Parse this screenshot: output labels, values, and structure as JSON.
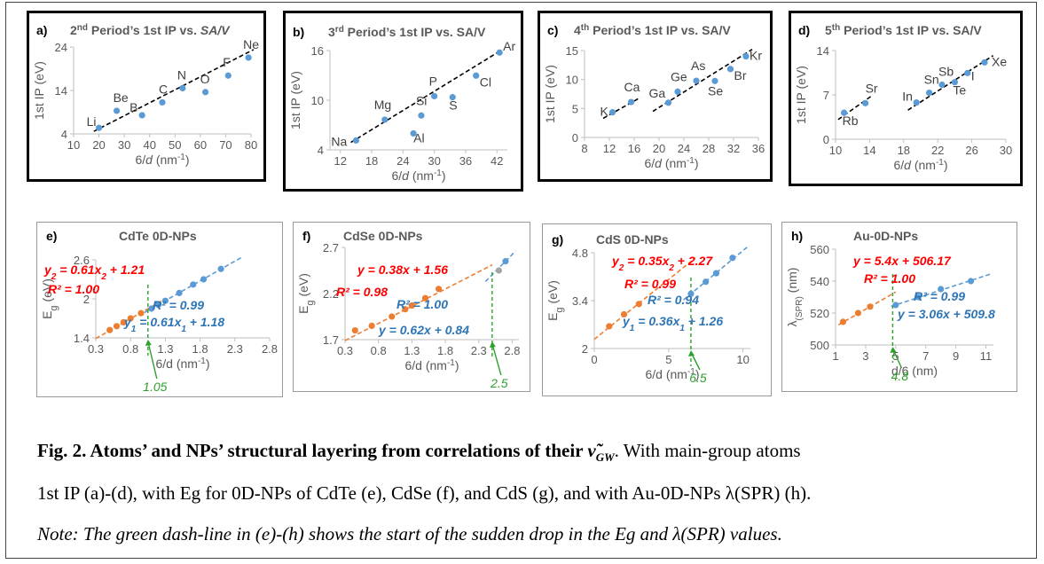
{
  "chart_data": [
    {
      "id": "a",
      "panel_label": "a)",
      "title_html": "2<tspan baseline-shift=\"super\" font-size=\"10\">nd</tspan> Period’s 1st IP vs. <tspan font-style=\"italic\">SA/V</tspan>",
      "type": "scatter",
      "xlabel_html": "6/<tspan font-style=\"italic\">d</tspan> (nm<tspan baseline-shift=\"super\" font-size=\"10\">-1</tspan>)",
      "ylabel": "1st IP (eV)",
      "xlim": [
        10,
        80
      ],
      "ylim": [
        4,
        24
      ],
      "xticks": [
        10,
        20,
        30,
        40,
        50,
        60,
        70,
        80
      ],
      "yticks": [
        4,
        14,
        24
      ],
      "series": [
        {
          "color": "#5b9bd5",
          "x": [
            20,
            27,
            37,
            45,
            53,
            62,
            71,
            79
          ],
          "y": [
            5.39,
            9.32,
            8.3,
            11.26,
            14.53,
            13.62,
            17.42,
            21.56
          ],
          "labels": [
            "Li",
            "Be",
            "B",
            "C",
            "N",
            "O",
            "F",
            "Ne"
          ]
        }
      ],
      "trendlines": [
        {
          "x": [
            18,
            81
          ],
          "y": [
            4.6,
            23.4
          ],
          "color": "#000000"
        }
      ]
    },
    {
      "id": "b",
      "panel_label": "b)",
      "title_html": "3<tspan baseline-shift=\"super\" font-size=\"10\">rd</tspan> Period’s 1st IP vs. SA/V",
      "type": "scatter",
      "xlabel_html": "6/<tspan font-style=\"italic\">d</tspan> (nm<tspan baseline-shift=\"super\" font-size=\"10\">-1</tspan>)",
      "ylabel": "1st IP (eV)",
      "xlim": [
        10,
        44
      ],
      "ylim": [
        4,
        16
      ],
      "xticks": [
        12,
        18,
        24,
        30,
        36,
        42
      ],
      "yticks": [
        4,
        10,
        16
      ],
      "series": [
        {
          "color": "#5b9bd5",
          "x": [
            15,
            20.5,
            26,
            27.5,
            30,
            33.5,
            38,
            42.5
          ],
          "y": [
            5.14,
            7.65,
            5.99,
            8.15,
            10.49,
            10.36,
            12.97,
            15.76
          ],
          "labels": [
            "Na",
            "Mg",
            "Al",
            "Si",
            "P",
            "S",
            "Cl",
            "Ar"
          ]
        }
      ],
      "trendlines": [
        {
          "x": [
            14,
            43
          ],
          "y": [
            4.9,
            16.1
          ],
          "color": "#000000"
        }
      ]
    },
    {
      "id": "c",
      "panel_label": "c)",
      "title_html": "4<tspan baseline-shift=\"super\" font-size=\"10\">th</tspan> Period’s 1st IP vs. SA/V",
      "type": "scatter",
      "xlabel_html": "6/<tspan font-style=\"italic\">d</tspan> (nm<tspan baseline-shift=\"super\" font-size=\"10\">-1</tspan>)",
      "ylabel": "1st IP (eV)",
      "xlim": [
        8,
        36
      ],
      "ylim": [
        0,
        15
      ],
      "xticks": [
        8,
        12,
        16,
        20,
        24,
        28,
        32,
        36
      ],
      "yticks": [
        0,
        5,
        10,
        15
      ],
      "series": [
        {
          "color": "#5b9bd5",
          "x": [
            12.5,
            15.5,
            21.5,
            23,
            26,
            29,
            31.5,
            34
          ],
          "y": [
            4.34,
            6.11,
            6.0,
            7.9,
            9.79,
            9.75,
            11.81,
            14.0
          ],
          "labels": [
            "K",
            "Ca",
            "Ga",
            "Ge",
            "As",
            "Se",
            "Br",
            "Kr"
          ]
        }
      ],
      "trendlines": [
        {
          "x": [
            11,
            17
          ],
          "y": [
            3.3,
            6.9
          ],
          "color": "#000000"
        },
        {
          "x": [
            19,
            35
          ],
          "y": [
            4.5,
            15.2
          ],
          "color": "#000000"
        }
      ]
    },
    {
      "id": "d",
      "panel_label": "d)",
      "title_html": "5<tspan baseline-shift=\"super\" font-size=\"10\">th</tspan> Period’s 1st IP vs. SA/V",
      "type": "scatter",
      "xlabel_html": "6/<tspan font-style=\"italic\">d</tspan> (nm<tspan baseline-shift=\"super\" font-size=\"10\">-1</tspan>)",
      "ylabel": "1st IP (eV)",
      "xlim": [
        10,
        30
      ],
      "ylim": [
        0,
        14
      ],
      "xticks": [
        10,
        14,
        18,
        22,
        26,
        30
      ],
      "yticks": [
        0,
        7,
        14
      ],
      "series": [
        {
          "color": "#5b9bd5",
          "x": [
            11,
            13.5,
            19.5,
            21,
            22.5,
            24,
            25.5,
            27.5
          ],
          "y": [
            4.18,
            5.69,
            5.79,
            7.34,
            8.61,
            9.01,
            10.45,
            12.13
          ],
          "labels": [
            "Rb",
            "Sr",
            "In",
            "Sn",
            "Sb",
            "Te",
            "I",
            "Xe"
          ]
        }
      ],
      "trendlines": [
        {
          "x": [
            10.3,
            14.3
          ],
          "y": [
            3.1,
            6.9
          ],
          "color": "#000000"
        },
        {
          "x": [
            18.5,
            28.5
          ],
          "y": [
            4.6,
            13.2
          ],
          "color": "#000000"
        }
      ]
    },
    {
      "id": "e",
      "panel_label": "e)",
      "title_html": "CdTe 0D-NPs",
      "type": "scatter",
      "xlabel_html": "6/d  (nm<tspan baseline-shift=\"super\" font-size=\"10\">-1</tspan>)",
      "ylabel_html": "E<tspan baseline-shift=\"sub\" font-size=\"11\">g</tspan> (eV)",
      "xlim": [
        0.3,
        2.8
      ],
      "ylim": [
        1.4,
        2.6
      ],
      "xticks": [
        0.3,
        0.8,
        1.3,
        1.8,
        2.3,
        2.8
      ],
      "yticks": [
        1.4,
        2,
        2.6
      ],
      "series": [
        {
          "color": "#ed7d31",
          "x": [
            0.5,
            0.6,
            0.7,
            0.8,
            0.95
          ],
          "y": [
            1.52,
            1.58,
            1.64,
            1.7,
            1.78
          ]
        },
        {
          "color": "#5b9bd5",
          "x": [
            1.1,
            1.2,
            1.3,
            1.5,
            1.7,
            1.85,
            2.1
          ],
          "y": [
            1.85,
            1.91,
            1.97,
            2.09,
            2.22,
            2.3,
            2.46
          ]
        }
      ],
      "trendlines": [
        {
          "x": [
            0.3,
            1.3
          ],
          "y": [
            1.39,
            2.0
          ],
          "color": "#ed7d31"
        },
        {
          "x": [
            1.0,
            2.4
          ],
          "y": [
            1.79,
            2.64
          ],
          "color": "#5b9bd5"
        }
      ],
      "marker": {
        "x": 1.05,
        "label": "1.05",
        "color": "#2ca02c"
      },
      "equations": [
        {
          "html": "y<tspan baseline-shift=\"sub\" font-size=\"10\">2</tspan> = 0.61x<tspan baseline-shift=\"sub\" font-size=\"10\">2</tspan> + 1.21",
          "color": "#ff0000"
        },
        {
          "html": "R² = 1.00",
          "color": "#ff0000"
        },
        {
          "html": "R² = 0.99",
          "color": "#2e75b6"
        },
        {
          "html": "y<tspan baseline-shift=\"sub\" font-size=\"10\">1</tspan> = 0.61x<tspan baseline-shift=\"sub\" font-size=\"10\">1</tspan> + 1.18",
          "color": "#2e75b6"
        }
      ]
    },
    {
      "id": "f",
      "panel_label": "f)",
      "title_html": "CdSe 0D-NPs",
      "type": "scatter",
      "xlabel_html": "6/d  (nm<tspan baseline-shift=\"super\" font-size=\"10\">-1</tspan>)",
      "ylabel_html": "E<tspan baseline-shift=\"sub\" font-size=\"11\">g</tspan> (eV)",
      "xlim": [
        0.3,
        2.9
      ],
      "ylim": [
        1.7,
        2.7
      ],
      "xticks": [
        0.3,
        0.8,
        1.3,
        1.8,
        2.3,
        2.8
      ],
      "yticks": [
        1.7,
        2.2,
        2.7
      ],
      "series": [
        {
          "color": "#ed7d31",
          "x": [
            0.45,
            0.7,
            1.0,
            1.2,
            1.3,
            1.5,
            1.7
          ],
          "y": [
            1.8,
            1.85,
            1.95,
            2.03,
            2.07,
            2.15,
            2.25
          ]
        },
        {
          "color": "#a5a5a5",
          "x": [
            2.6
          ],
          "y": [
            2.45
          ]
        },
        {
          "color": "#5b9bd5",
          "x": [
            2.7
          ],
          "y": [
            2.55
          ]
        }
      ],
      "trendlines": [
        {
          "x": [
            0.3,
            2.5
          ],
          "y": [
            1.69,
            2.51
          ],
          "color": "#ed7d31"
        },
        {
          "x": [
            2.4,
            2.85
          ],
          "y": [
            2.33,
            2.66
          ],
          "color": "#5b9bd5"
        }
      ],
      "marker": {
        "x": 2.5,
        "label": "2.5",
        "color": "#2ca02c"
      },
      "equations": [
        {
          "html": "y = 0.38x + 1.56",
          "color": "#ff0000"
        },
        {
          "html": "R² = 0.98",
          "color": "#ff0000"
        },
        {
          "html": "R² = 1.00",
          "color": "#2e75b6"
        },
        {
          "html": "y = 0.62x + 0.84",
          "color": "#2e75b6"
        }
      ]
    },
    {
      "id": "g",
      "panel_label": "g)",
      "title_html": "CdS 0D-NPs",
      "type": "scatter",
      "xlabel_html": "6/d (nm<tspan baseline-shift=\"super\" font-size=\"10\">-1</tspan>)",
      "ylabel_html": "E<tspan baseline-shift=\"sub\" font-size=\"11\">g</tspan> (eV)",
      "xlim": [
        0,
        10.5
      ],
      "ylim": [
        2.0,
        4.8
      ],
      "xticks": [
        0,
        5,
        10
      ],
      "yticks": [
        2,
        3.4,
        4.8
      ],
      "series": [
        {
          "color": "#ed7d31",
          "x": [
            1,
            2,
            3
          ],
          "y": [
            2.65,
            3.0,
            3.3
          ]
        },
        {
          "color": "#5b9bd5",
          "x": [
            6.5,
            7.5,
            8.2,
            9.3
          ],
          "y": [
            3.6,
            3.95,
            4.2,
            4.65
          ]
        }
      ],
      "trendlines": [
        {
          "x": [
            0,
            6.8
          ],
          "y": [
            2.27,
            4.65
          ],
          "color": "#ed7d31"
        },
        {
          "x": [
            6.0,
            10.3
          ],
          "y": [
            3.42,
            4.97
          ],
          "color": "#5b9bd5"
        }
      ],
      "marker": {
        "x": 6.5,
        "label": "6.5",
        "color": "#2ca02c"
      },
      "equations": [
        {
          "html": "y<tspan baseline-shift=\"sub\" font-size=\"10\">2</tspan> = 0.35x<tspan baseline-shift=\"sub\" font-size=\"10\">2</tspan> + 2.27",
          "color": "#ff0000"
        },
        {
          "html": "R² = 0.99",
          "color": "#ff0000"
        },
        {
          "html": "R² = 0.94",
          "color": "#2e75b6"
        },
        {
          "html": "y<tspan baseline-shift=\"sub\" font-size=\"10\">1</tspan> = 0.36x<tspan baseline-shift=\"sub\" font-size=\"10\">1</tspan> + 1.26",
          "color": "#2e75b6"
        }
      ]
    },
    {
      "id": "h",
      "panel_label": "h)",
      "title_html": "Au-0D-NPs",
      "type": "scatter",
      "xlabel_html": "d/6 (nm)",
      "ylabel_html": "λ<tspan baseline-shift=\"sub\" font-size=\"10\">(SPR)</tspan> (nm)",
      "xlim": [
        1,
        11.5
      ],
      "ylim": [
        500,
        560
      ],
      "xticks": [
        1,
        3,
        5,
        7,
        9,
        11
      ],
      "yticks": [
        500,
        520,
        540,
        560
      ],
      "series": [
        {
          "color": "#ed7d31",
          "x": [
            1.5,
            2.5,
            3.3
          ],
          "y": [
            514.5,
            520,
            524
          ]
        },
        {
          "color": "#5b9bd5",
          "x": [
            5,
            6.5,
            8,
            10
          ],
          "y": [
            525,
            530,
            535,
            540
          ]
        }
      ],
      "trendlines": [
        {
          "x": [
            1.2,
            5.0
          ],
          "y": [
            512.6,
            533.2
          ],
          "color": "#ed7d31"
        },
        {
          "x": [
            4.7,
            11.3
          ],
          "y": [
            524.2,
            544.4
          ],
          "color": "#5b9bd5"
        }
      ],
      "marker": {
        "x": 4.8,
        "label": "4.8",
        "color": "#2ca02c"
      },
      "equations": [
        {
          "html": "y = 5.4x + 506.17",
          "color": "#ff0000"
        },
        {
          "html": "R² = 1.00",
          "color": "#ff0000"
        },
        {
          "html": "R² = 0.99",
          "color": "#2e75b6"
        },
        {
          "html": "y = 3.06x + 509.8",
          "color": "#2e75b6"
        }
      ]
    }
  ],
  "caption": {
    "line1_bold": "Fig. 2. Atoms’ and NPs’ structural layering from correlations of their ",
    "line1_symbol": "ν̃",
    "line1_symbol_sub": "GW",
    "line1_rest": ". With main-group atoms",
    "line2": "1st IP (a)-(d), with Eg for 0D-NPs of CdTe (e), CdSe (f), and CdS (g), and with Au-0D-NPs λ(SPR) (h).",
    "line3": "Note: The green dash-line in (e)-(h) shows the start of the sudden drop in the Eg and λ(SPR) values."
  }
}
